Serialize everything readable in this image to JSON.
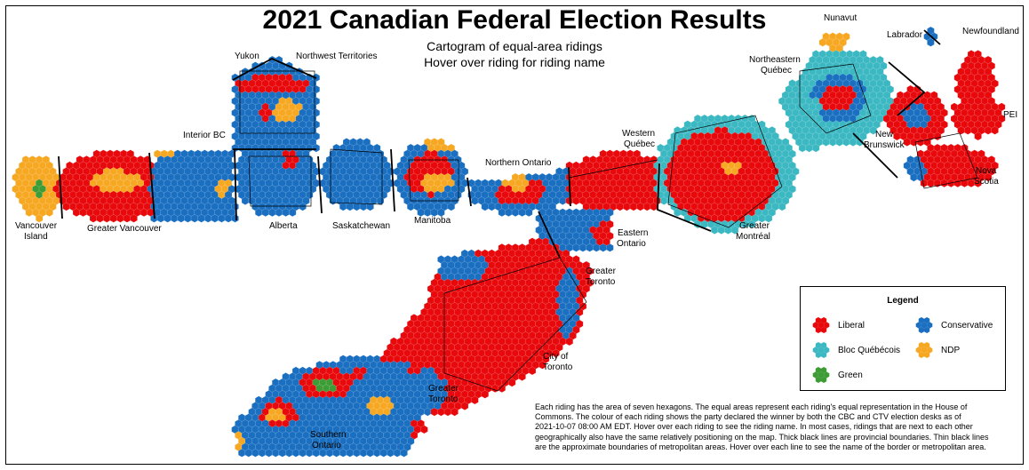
{
  "header": {
    "title": "2021 Canadian Federal Election Results",
    "subtitle_1": "Cartogram of equal-area ridings",
    "subtitle_2": "Hover over riding for riding name"
  },
  "colors": {
    "liberal": "#e8090c",
    "conservative": "#1a6fc1",
    "bloc": "#3cb8c2",
    "ndp": "#f7a823",
    "green": "#3d9c35"
  },
  "regions": {
    "yukon": "Yukon",
    "nwt": "Northwest Territories",
    "nunavut": "Nunavut",
    "labrador": "Labrador",
    "newfoundland": "Newfoundland",
    "ne_quebec_1": "Northeastern",
    "ne_quebec_2": "Québec",
    "pei": "PEI",
    "nb_1": "New",
    "nb_2": "Brunswick",
    "ns_1": "Nova",
    "ns_2": "Scotia",
    "interior_bc": "Interior BC",
    "western_quebec_1": "Western",
    "western_quebec_2": "Québec",
    "northern_ontario": "Northern Ontario",
    "vancouver_island_1": "Vancouver",
    "vancouver_island_2": "Island",
    "greater_vancouver": "Greater Vancouver",
    "alberta": "Alberta",
    "saskatchewan": "Saskatchewan",
    "manitoba": "Manitoba",
    "greater_montreal_1": "Greater",
    "greater_montreal_2": "Montréal",
    "eastern_ontario_1": "Eastern",
    "eastern_ontario_2": "Ontario",
    "gta_1": "Greater",
    "gta_2": "Toronto",
    "city_toronto_1": "City of",
    "city_toronto_2": "Toronto",
    "gta_south_1": "Greater",
    "gta_south_2": "Toronto",
    "southern_ontario_1": "Southern",
    "southern_ontario_2": "Ontario"
  },
  "legend": {
    "title": "Legend",
    "items": [
      {
        "label": "Liberal",
        "color_key": "liberal"
      },
      {
        "label": "Conservative",
        "color_key": "conservative"
      },
      {
        "label": "Bloc Québécois",
        "color_key": "bloc"
      },
      {
        "label": "NDP",
        "color_key": "ndp"
      },
      {
        "label": "Green",
        "color_key": "green"
      }
    ]
  },
  "note": {
    "line_1": "Each riding has the area of seven hexagons.  The equal areas represent each riding's equal representation in the House of",
    "line_2": "Commons.  The colour of each riding shows the party declared the winner by both the CBC and CTV election desks as of",
    "line_3": "2021-10-07 08:00 AM EDT.  Hover over each riding to see the riding name.  In most cases, ridings that are next to each other",
    "line_4": "geographically also have the same relatively positioning on the map.  Thick black lines are provincial boundaries.  Thin black lines",
    "line_5": "are the approximate boundaries of metropolitan areas.  Hover over each line to see the name of the border or metropolitan area."
  }
}
